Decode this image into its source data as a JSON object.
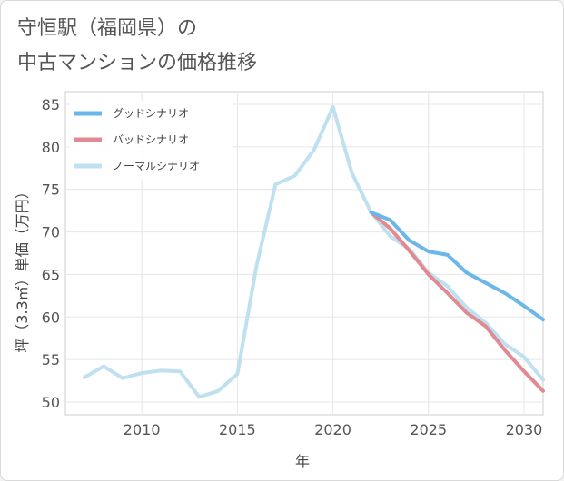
{
  "title_line1": "守恒駅（福岡県）の",
  "title_line2": "中古マンションの価格推移",
  "chart_data": {
    "type": "line",
    "xlabel": "年",
    "ylabel": "坪（3.3㎡）単価（万円）",
    "xlim": [
      2006.0,
      2031.0
    ],
    "ylim": [
      48.5,
      86.5
    ],
    "xticks": [
      2010,
      2015,
      2020,
      2025,
      2030
    ],
    "yticks": [
      50,
      55,
      60,
      65,
      70,
      75,
      80,
      85
    ],
    "legend_position": "top-left",
    "series": [
      {
        "name": "グッドシナリオ",
        "color": "#6bb7ea",
        "x": [
          2022,
          2023,
          2024,
          2025,
          2026,
          2027,
          2028,
          2029,
          2030,
          2031
        ],
        "y": [
          72.3,
          71.4,
          69.0,
          67.7,
          67.3,
          65.2,
          64.0,
          62.8,
          61.3,
          59.7
        ]
      },
      {
        "name": "バッドシナリオ",
        "color": "#e08a92",
        "x": [
          2022,
          2023,
          2024,
          2025,
          2026,
          2027,
          2028,
          2029,
          2030,
          2031
        ],
        "y": [
          72.3,
          70.4,
          67.8,
          65.0,
          62.8,
          60.5,
          58.9,
          56.1,
          53.6,
          51.3
        ]
      },
      {
        "name": "ノーマルシナリオ",
        "color": "#bfe1ef",
        "x": [
          2007,
          2008,
          2009,
          2010,
          2011,
          2012,
          2013,
          2014,
          2015,
          2016,
          2017,
          2018,
          2019,
          2020,
          2021,
          2022,
          2023,
          2024,
          2025,
          2026,
          2027,
          2028,
          2029,
          2030,
          2031
        ],
        "y": [
          52.9,
          54.2,
          52.8,
          53.4,
          53.7,
          53.6,
          50.6,
          51.3,
          53.3,
          66.0,
          75.6,
          76.6,
          79.6,
          84.7,
          76.9,
          72.3,
          69.5,
          68.0,
          65.2,
          63.6,
          61.1,
          59.3,
          56.8,
          55.3,
          52.6
        ]
      }
    ]
  }
}
